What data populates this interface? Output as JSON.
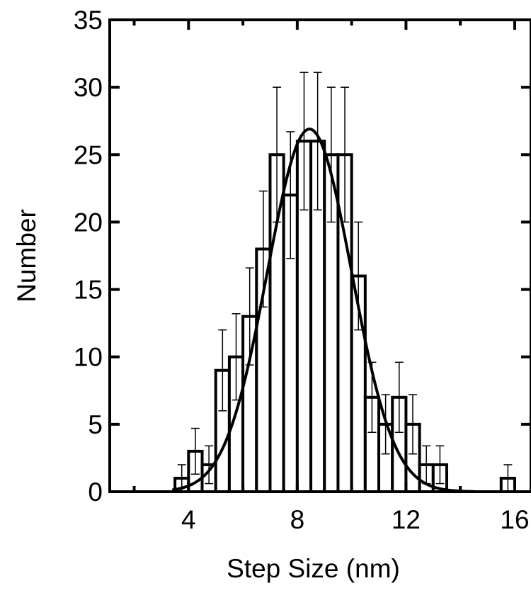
{
  "chart_data": {
    "type": "bar",
    "xlabel": "Step Size (nm)",
    "ylabel": "Number",
    "xlim": [
      1.1,
      16.6
    ],
    "ylim": [
      0,
      35
    ],
    "x_ticks": [
      4,
      8,
      12,
      16
    ],
    "y_ticks": [
      0,
      5,
      10,
      15,
      20,
      25,
      30,
      35
    ],
    "bin_width": 0.5,
    "bins": [
      {
        "x": 3.75,
        "count": 1,
        "error": 1
      },
      {
        "x": 4.25,
        "count": 3,
        "error": 1.7
      },
      {
        "x": 4.75,
        "count": 2,
        "error": 1.4
      },
      {
        "x": 5.25,
        "count": 9,
        "error": 3
      },
      {
        "x": 5.75,
        "count": 10,
        "error": 3.2
      },
      {
        "x": 6.25,
        "count": 13,
        "error": 3.6
      },
      {
        "x": 6.75,
        "count": 18,
        "error": 4.3
      },
      {
        "x": 7.25,
        "count": 25,
        "error": 5
      },
      {
        "x": 7.75,
        "count": 22,
        "error": 4.7
      },
      {
        "x": 8.25,
        "count": 26,
        "error": 5.1
      },
      {
        "x": 8.75,
        "count": 26,
        "error": 5.1
      },
      {
        "x": 9.25,
        "count": 25,
        "error": 5
      },
      {
        "x": 9.75,
        "count": 25,
        "error": 5
      },
      {
        "x": 10.25,
        "count": 16,
        "error": 4
      },
      {
        "x": 10.75,
        "count": 7,
        "error": 2.6
      },
      {
        "x": 11.25,
        "count": 5,
        "error": 2.2
      },
      {
        "x": 11.75,
        "count": 7,
        "error": 2.6
      },
      {
        "x": 12.25,
        "count": 5,
        "error": 2.2
      },
      {
        "x": 12.75,
        "count": 2,
        "error": 1.4
      },
      {
        "x": 13.25,
        "count": 2,
        "error": 1.4
      },
      {
        "x": 15.75,
        "count": 1,
        "error": 1
      }
    ],
    "fit": {
      "type": "gaussian",
      "amplitude": 26.9,
      "mean": 8.45,
      "sigma": 1.55
    },
    "grid": false,
    "legend": "none"
  }
}
